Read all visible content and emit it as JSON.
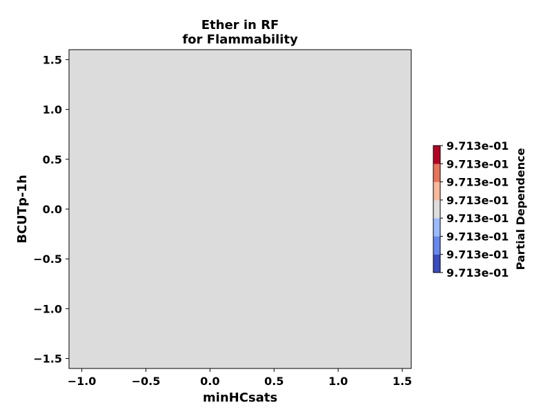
{
  "chart_data": {
    "type": "heatmap",
    "title": [
      "Ether in RF",
      "for Flammability"
    ],
    "xlabel": "minHCsats",
    "ylabel": "BCUTp-1h",
    "xlim": [
      -1.1,
      1.57
    ],
    "ylim": [
      -1.6,
      1.6
    ],
    "x_ticks": [
      {
        "value": -1.0,
        "label": "−1.0"
      },
      {
        "value": -0.5,
        "label": "−0.5"
      },
      {
        "value": 0.0,
        "label": "0.0"
      },
      {
        "value": 0.5,
        "label": "0.5"
      },
      {
        "value": 1.0,
        "label": "1.0"
      },
      {
        "value": 1.5,
        "label": "1.5"
      }
    ],
    "y_ticks": [
      {
        "value": 1.5,
        "label": "1.5"
      },
      {
        "value": 1.0,
        "label": "1.0"
      },
      {
        "value": 0.5,
        "label": "0.5"
      },
      {
        "value": 0.0,
        "label": "0.0"
      },
      {
        "value": -0.5,
        "label": "−0.5"
      },
      {
        "value": -1.0,
        "label": "−1.0"
      },
      {
        "value": -1.5,
        "label": "−1.5"
      }
    ],
    "field_color": "#dcdcdc",
    "colorbar": {
      "label": "Partial Dependence",
      "ticks": [
        "9.713e-01",
        "9.713e-01",
        "9.713e-01",
        "9.713e-01",
        "9.713e-01",
        "9.713e-01",
        "9.713e-01",
        "9.713e-01"
      ],
      "colors": [
        "#3b4cc0",
        "#6788ee",
        "#9abbff",
        "#dddddd",
        "#f7b89c",
        "#e7745b",
        "#b40426"
      ]
    },
    "grid": false,
    "legend": "none"
  }
}
